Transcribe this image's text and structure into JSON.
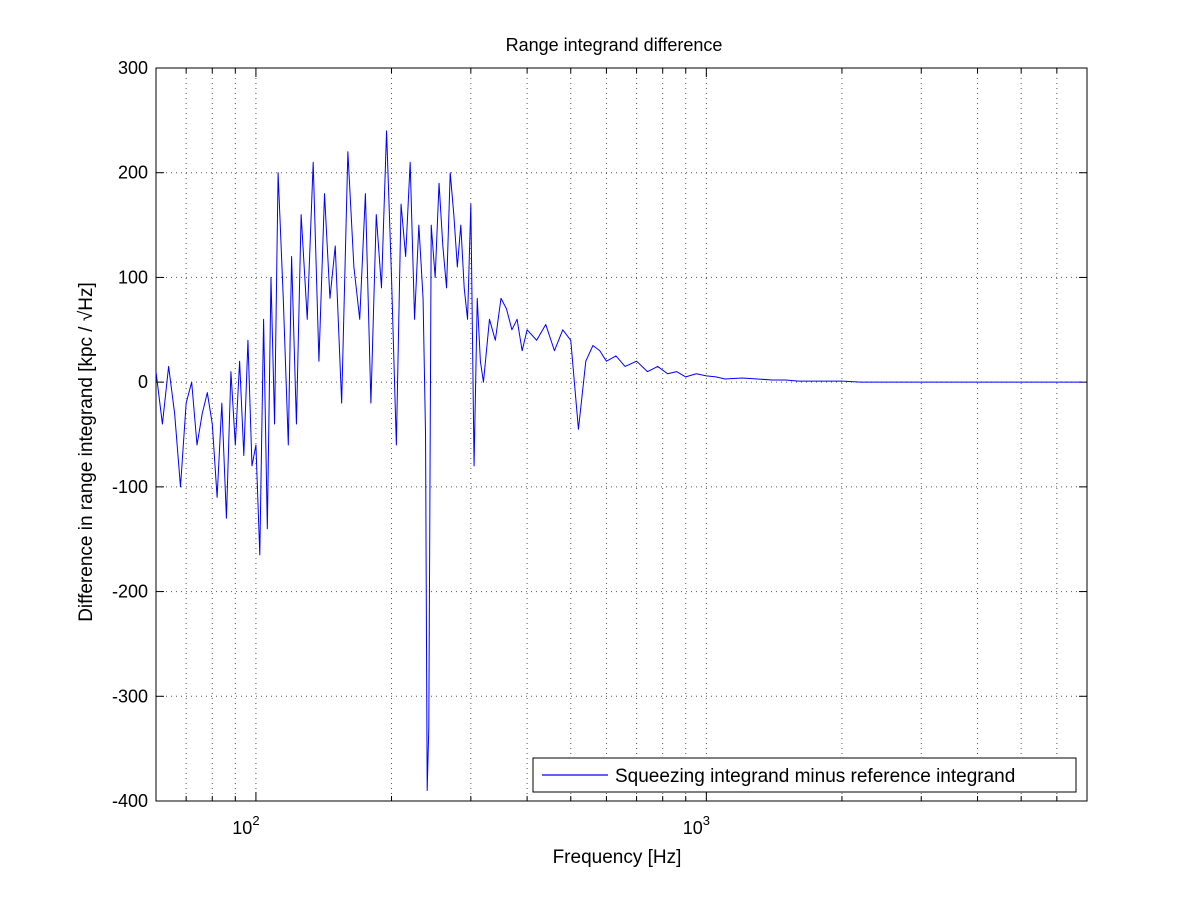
{
  "chart_data": {
    "type": "line",
    "title": "Range integrand difference",
    "xlabel": "Frequency [Hz]",
    "ylabel": "Difference in range integrand [kpc /   √Hz]",
    "x_scale": "log",
    "xlim": [
      60,
      7000
    ],
    "ylim": [
      -400,
      300
    ],
    "y_ticks": [
      300,
      200,
      100,
      0,
      -100,
      -200,
      -300,
      -400
    ],
    "x_tick_labels": [
      {
        "value": 100,
        "base": "10",
        "exp": "2"
      },
      {
        "value": 1000,
        "base": "10",
        "exp": "3"
      }
    ],
    "grid": true,
    "legend_position": "bottom-right",
    "series": [
      {
        "name": "Squeezing integrand minus reference integrand",
        "color": "#0000ff",
        "x": [
          60,
          62,
          64,
          66,
          68,
          70,
          72,
          74,
          76,
          78,
          80,
          82,
          84,
          86,
          88,
          90,
          92,
          94,
          96,
          98,
          100,
          102,
          104,
          106,
          108,
          110,
          112,
          115,
          118,
          120,
          123,
          126,
          130,
          134,
          138,
          142,
          146,
          150,
          155,
          160,
          165,
          170,
          175,
          180,
          185,
          190,
          195,
          200,
          205,
          210,
          215,
          220,
          225,
          230,
          235,
          238,
          240,
          242,
          245,
          250,
          255,
          260,
          265,
          270,
          275,
          280,
          285,
          290,
          295,
          300,
          305,
          310,
          315,
          320,
          330,
          340,
          350,
          360,
          370,
          380,
          390,
          400,
          420,
          440,
          460,
          480,
          500,
          520,
          540,
          560,
          580,
          600,
          630,
          660,
          700,
          740,
          780,
          820,
          860,
          900,
          950,
          1000,
          1050,
          1100,
          1200,
          1300,
          1400,
          1500,
          1600,
          1800,
          2000,
          2200,
          2500,
          2800,
          3200,
          3600,
          4000,
          4500,
          5000,
          5500,
          6000,
          6500,
          6800
        ],
        "y": [
          10,
          -40,
          15,
          -30,
          -100,
          -20,
          0,
          -60,
          -30,
          -10,
          -40,
          -110,
          -20,
          -130,
          10,
          -60,
          20,
          -70,
          40,
          -80,
          -60,
          -165,
          60,
          -140,
          100,
          -40,
          200,
          80,
          -60,
          120,
          -40,
          160,
          60,
          210,
          20,
          180,
          80,
          130,
          -20,
          220,
          110,
          60,
          180,
          -20,
          160,
          90,
          240,
          100,
          -60,
          170,
          120,
          210,
          60,
          150,
          80,
          -50,
          -390,
          -330,
          150,
          100,
          190,
          130,
          90,
          200,
          160,
          110,
          150,
          90,
          60,
          170,
          -80,
          80,
          20,
          0,
          60,
          40,
          80,
          70,
          50,
          60,
          30,
          50,
          40,
          55,
          30,
          50,
          40,
          -45,
          20,
          35,
          30,
          20,
          25,
          15,
          20,
          10,
          15,
          8,
          10,
          5,
          8,
          6,
          5,
          3,
          4,
          3,
          2,
          2,
          1,
          1,
          1,
          0,
          0,
          0,
          0,
          0,
          0,
          0,
          0,
          0,
          0,
          0,
          0
        ]
      }
    ]
  }
}
